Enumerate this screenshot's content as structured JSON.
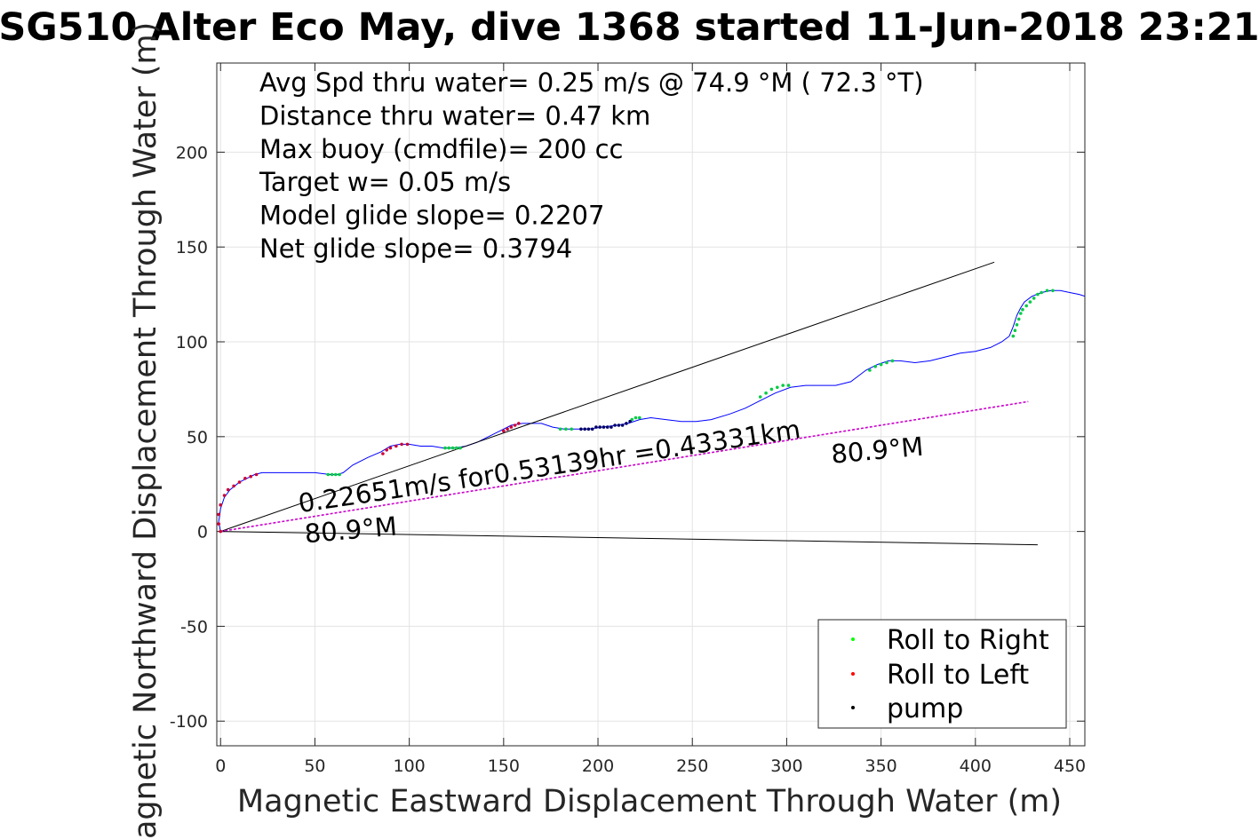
{
  "chart_data": {
    "type": "line",
    "title": "SG510 Alter Eco May, dive 1368 started 11-Jun-2018 23:21",
    "xlabel": "Magnetic Eastward Displacement Through Water (m)",
    "ylabel": "Magnetic Northward Displacement Through Water (m)",
    "xlim": [
      -2,
      458
    ],
    "ylim": [
      -113,
      247
    ],
    "xticks": [
      0,
      50,
      100,
      150,
      200,
      250,
      300,
      350,
      400,
      450
    ],
    "yticks": [
      -100,
      -50,
      0,
      50,
      100,
      150,
      200
    ],
    "grid": true,
    "info_lines": [
      "Avg Spd thru water=  0.25 m/s @  74.9 °M ( 72.3 °T)",
      "Distance thru water=  0.47 km",
      "Max buoy (cmdfile)= 200 cc",
      "Target w= 0.05 m/s",
      "Model glide slope= 0.2207",
      "Net glide slope= 0.3794"
    ],
    "annotations": [
      {
        "text": "0.22651m/s for0.53139hr =0.43331km",
        "x": 42,
        "y": 10,
        "rotation_deg": -8.5
      },
      {
        "text": "80.9°M",
        "x": 45,
        "y": -6,
        "rotation_deg": -5
      },
      {
        "text": "80.9°M",
        "x": 324,
        "y": 36,
        "rotation_deg": -5
      }
    ],
    "series": [
      {
        "role": "track",
        "color": "#0000ff",
        "x": [
          0,
          -1,
          0,
          2,
          5,
          10,
          14,
          18,
          22,
          30,
          40,
          50,
          58,
          62,
          65,
          70,
          78,
          85,
          90,
          95,
          100,
          106,
          112,
          118,
          124,
          130,
          136,
          142,
          148,
          154,
          160,
          166,
          170,
          176,
          182,
          188,
          195,
          202,
          210,
          216,
          222,
          228,
          236,
          244,
          252,
          260,
          270,
          278,
          286,
          294,
          302,
          310,
          318,
          326,
          334,
          342,
          348,
          354,
          360,
          368,
          376,
          384,
          392,
          400,
          408,
          414,
          418,
          420,
          422,
          424,
          426,
          430,
          435,
          440,
          445,
          450,
          455,
          458
        ],
        "y": [
          0,
          5,
          12,
          18,
          22,
          26,
          28,
          30,
          31,
          31,
          31,
          31,
          30,
          30,
          31,
          35,
          39,
          42,
          45,
          46,
          46,
          45,
          45,
          44,
          44,
          45,
          47,
          50,
          53,
          56,
          57,
          57,
          57,
          55,
          54,
          54,
          54,
          55,
          56,
          57,
          59,
          60,
          59,
          58,
          58,
          59,
          62,
          65,
          69,
          73,
          76,
          77,
          77,
          77,
          79,
          85,
          88,
          90,
          90,
          89,
          90,
          92,
          94,
          95,
          97,
          100,
          103,
          108,
          114,
          118,
          121,
          124,
          126,
          127,
          127,
          126,
          125,
          124
        ]
      },
      {
        "role": "heading-line",
        "color": "#000000",
        "x": [
          0,
          410
        ],
        "y": [
          0,
          142
        ]
      },
      {
        "role": "drift-line",
        "color": "#000000",
        "x": [
          0,
          433
        ],
        "y": [
          0,
          -7
        ]
      },
      {
        "role": "net-track",
        "color": "#cc00cc",
        "x": [
          0,
          428
        ],
        "y": [
          0,
          68.5
        ]
      }
    ],
    "legend": {
      "location": "bottom-right",
      "items": [
        {
          "label": "Roll to Right",
          "color": "#00ff00"
        },
        {
          "label": "Roll to Left",
          "color": "#ff0000"
        },
        {
          "label": "pump",
          "color": "#000000"
        }
      ]
    },
    "markers": {
      "roll_right_color": "#00cc44",
      "roll_left_color": "#cc0033",
      "pump_color": "#000066",
      "roll_right": [
        [
          57,
          30
        ],
        [
          59,
          30
        ],
        [
          61,
          30
        ],
        [
          63,
          30
        ],
        [
          119,
          44
        ],
        [
          121,
          44
        ],
        [
          123,
          44
        ],
        [
          125,
          44
        ],
        [
          127,
          44
        ],
        [
          180,
          54
        ],
        [
          183,
          54
        ],
        [
          186,
          54
        ],
        [
          218,
          59
        ],
        [
          220,
          60
        ],
        [
          222,
          60
        ],
        [
          286,
          71
        ],
        [
          289,
          73
        ],
        [
          292,
          75
        ],
        [
          295,
          76
        ],
        [
          298,
          77
        ],
        [
          301,
          77
        ],
        [
          344,
          85
        ],
        [
          347,
          87
        ],
        [
          350,
          88
        ],
        [
          353,
          89
        ],
        [
          356,
          90
        ],
        [
          420,
          103
        ],
        [
          421,
          106
        ],
        [
          422,
          109
        ],
        [
          423,
          112
        ],
        [
          424,
          115
        ],
        [
          425,
          117
        ],
        [
          427,
          119
        ],
        [
          429,
          121
        ],
        [
          431,
          123
        ],
        [
          433,
          125
        ],
        [
          435,
          126
        ],
        [
          438,
          127
        ],
        [
          441,
          127
        ]
      ],
      "roll_left": [
        [
          0,
          0
        ],
        [
          -1,
          4
        ],
        [
          -1,
          9
        ],
        [
          0,
          14
        ],
        [
          2,
          19
        ],
        [
          4,
          22
        ],
        [
          7,
          24
        ],
        [
          10,
          26
        ],
        [
          13,
          28
        ],
        [
          16,
          29
        ],
        [
          19,
          30
        ],
        [
          86,
          41
        ],
        [
          88,
          43
        ],
        [
          90,
          44
        ],
        [
          93,
          45
        ],
        [
          96,
          46
        ],
        [
          99,
          46
        ],
        [
          150,
          53
        ],
        [
          152,
          54
        ],
        [
          154,
          55
        ],
        [
          156,
          56
        ],
        [
          158,
          57
        ]
      ],
      "pump": [
        [
          191,
          54
        ],
        [
          193,
          54
        ],
        [
          195,
          54
        ],
        [
          197,
          54
        ],
        [
          199,
          55
        ],
        [
          201,
          55
        ],
        [
          203,
          55
        ],
        [
          205,
          55
        ],
        [
          207,
          55
        ],
        [
          209,
          56
        ],
        [
          211,
          56
        ],
        [
          213,
          56
        ],
        [
          215,
          57
        ],
        [
          217,
          58
        ]
      ]
    }
  }
}
